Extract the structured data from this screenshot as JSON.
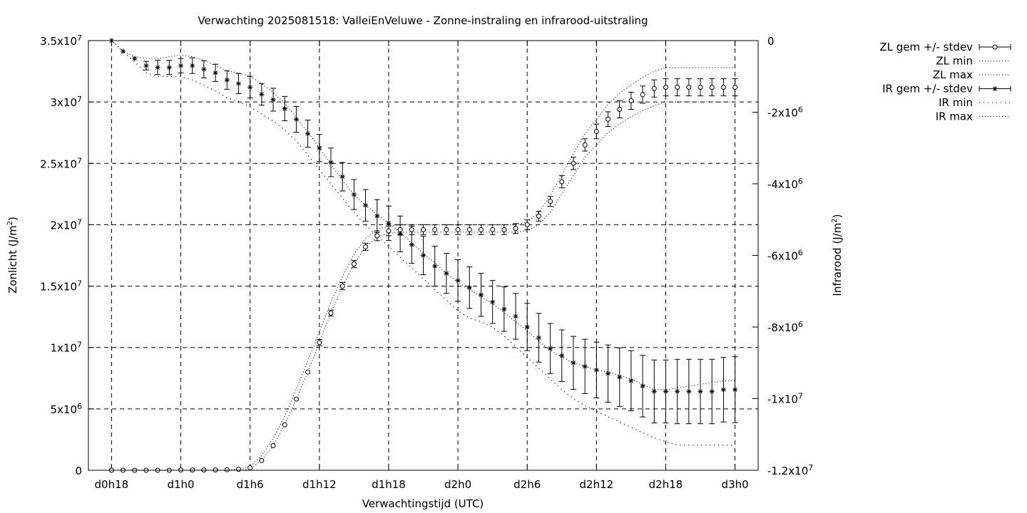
{
  "chart_data": {
    "type": "line",
    "title": "Verwachting 2025081518: ValleiEnVeluwe - Zonne-instraling en infrarood-uitstraling",
    "xlabel": "Verwachtingstijd (UTC)",
    "ylabel_left": "Zonlicht (J/m",
    "ylabel_right": "Infrarood (J/m",
    "ylabel_sup": "2",
    "ylabel_close": ")",
    "x_ticks": [
      {
        "h": 0,
        "label": "d0h18"
      },
      {
        "h": 6,
        "label": "d1h0"
      },
      {
        "h": 12,
        "label": "d1h6"
      },
      {
        "h": 18,
        "label": "d1h12"
      },
      {
        "h": 24,
        "label": "d1h18"
      },
      {
        "h": 30,
        "label": "d2h0"
      },
      {
        "h": 36,
        "label": "d2h6"
      },
      {
        "h": 42,
        "label": "d2h12"
      },
      {
        "h": 48,
        "label": "d2h18"
      },
      {
        "h": 54,
        "label": "d3h0"
      }
    ],
    "xlim": [
      -2,
      56
    ],
    "y_left": {
      "lim": [
        0,
        35000000
      ],
      "ticks": [
        {
          "v": 0,
          "m": "0",
          "e": ""
        },
        {
          "v": 5000000,
          "m": "5x10",
          "e": "6"
        },
        {
          "v": 10000000,
          "m": "1x10",
          "e": "7"
        },
        {
          "v": 15000000,
          "m": "1.5x10",
          "e": "7"
        },
        {
          "v": 20000000,
          "m": "2x10",
          "e": "7"
        },
        {
          "v": 25000000,
          "m": "2.5x10",
          "e": "7"
        },
        {
          "v": 30000000,
          "m": "3x10",
          "e": "7"
        },
        {
          "v": 35000000,
          "m": "3.5x10",
          "e": "7"
        }
      ]
    },
    "y_right": {
      "lim": [
        -12000000,
        0
      ],
      "ticks": [
        {
          "v": 0,
          "m": "0",
          "e": ""
        },
        {
          "v": -2000000,
          "m": "-2x10",
          "e": "6"
        },
        {
          "v": -4000000,
          "m": "-4x10",
          "e": "6"
        },
        {
          "v": -6000000,
          "m": "-6x10",
          "e": "6"
        },
        {
          "v": -8000000,
          "m": "-8x10",
          "e": "6"
        },
        {
          "v": -10000000,
          "m": "-1x10",
          "e": "7"
        },
        {
          "v": -12000000,
          "m": "-1.2x10",
          "e": "7"
        }
      ]
    },
    "grid": true,
    "legend_position": "top-right outside",
    "legend": [
      "ZL gem +/- stdev",
      "ZL min",
      "ZL max",
      "IR gem +/- stdev",
      "IR min",
      "IR max"
    ],
    "x": [
      0,
      1,
      2,
      3,
      4,
      5,
      6,
      7,
      8,
      9,
      10,
      11,
      12,
      13,
      14,
      15,
      16,
      17,
      18,
      19,
      20,
      21,
      22,
      23,
      24,
      25,
      26,
      27,
      28,
      29,
      30,
      31,
      32,
      33,
      34,
      35,
      36,
      37,
      38,
      39,
      40,
      41,
      42,
      43,
      44,
      45,
      46,
      47,
      48,
      49,
      50,
      51,
      52,
      53,
      54
    ],
    "series": [
      {
        "name": "ZL gem +/- stdev",
        "axis": "left",
        "marker": "circle",
        "values": [
          0,
          0,
          0,
          0,
          0,
          0,
          20000,
          20000,
          20000,
          20000,
          40000,
          80000,
          200000,
          800000,
          2000000,
          3700000,
          5800000,
          8000000,
          10400000,
          12800000,
          15000000,
          16800000,
          18200000,
          19100000,
          19500000,
          19600000,
          19600000,
          19600000,
          19600000,
          19600000,
          19600000,
          19600000,
          19600000,
          19600000,
          19600000,
          19700000,
          20000000,
          20700000,
          21900000,
          23500000,
          25000000,
          26500000,
          27600000,
          28600000,
          29400000,
          30100000,
          30600000,
          31100000,
          31200000,
          31200000,
          31200000,
          31200000,
          31200000,
          31200000,
          31200000
        ],
        "err": [
          0,
          0,
          0,
          0,
          0,
          0,
          0,
          0,
          0,
          0,
          0,
          0,
          0,
          0,
          0,
          0,
          0,
          0,
          250000,
          250000,
          300000,
          300000,
          300000,
          400000,
          400000,
          400000,
          400000,
          400000,
          400000,
          400000,
          400000,
          400000,
          400000,
          400000,
          400000,
          400000,
          400000,
          400000,
          400000,
          500000,
          500000,
          500000,
          600000,
          600000,
          700000,
          700000,
          700000,
          700000,
          700000,
          700000,
          700000,
          700000,
          700000,
          700000,
          700000
        ]
      },
      {
        "name": "ZL min",
        "axis": "left",
        "values": [
          0,
          0,
          0,
          0,
          0,
          0,
          0,
          0,
          0,
          0,
          0,
          0,
          100000,
          800000,
          2000000,
          3700000,
          5800000,
          8000000,
          10400000,
          12800000,
          15000000,
          16800000,
          18200000,
          19000000,
          19300000,
          19400000,
          19400000,
          19400000,
          19400000,
          19400000,
          19400000,
          19400000,
          19400000,
          19400000,
          19400000,
          19400000,
          19500000,
          20000000,
          21000000,
          22500000,
          24000000,
          25500000,
          26500000,
          27500000,
          28200000,
          28800000,
          29300000,
          29700000,
          30000000,
          30000000,
          30000000,
          30000000,
          30000000,
          30000000,
          30000000
        ]
      },
      {
        "name": "ZL max",
        "axis": "left",
        "values": [
          0,
          0,
          0,
          0,
          0,
          0,
          0,
          0,
          0,
          0,
          0,
          100000,
          300000,
          1200000,
          2600000,
          4400000,
          6600000,
          8900000,
          11300000,
          13700000,
          15800000,
          17600000,
          18900000,
          19600000,
          19900000,
          20000000,
          20000000,
          20000000,
          20000000,
          20000000,
          20000000,
          20000000,
          20000000,
          20000000,
          20000000,
          20000000,
          20200000,
          21000000,
          22400000,
          24100000,
          25800000,
          27400000,
          28600000,
          29800000,
          30700000,
          31400000,
          32000000,
          32500000,
          32800000,
          32800000,
          32800000,
          32800000,
          32800000,
          32800000,
          32800000
        ]
      },
      {
        "name": "IR gem +/- stdev",
        "axis": "right",
        "marker": "star",
        "values": [
          0,
          -300000,
          -500000,
          -700000,
          -750000,
          -750000,
          -700000,
          -700000,
          -800000,
          -900000,
          -1100000,
          -1200000,
          -1300000,
          -1500000,
          -1650000,
          -1900000,
          -2200000,
          -2600000,
          -3000000,
          -3400000,
          -3800000,
          -4300000,
          -4600000,
          -4900000,
          -5100000,
          -5400000,
          -5700000,
          -6000000,
          -6300000,
          -6500000,
          -6700000,
          -6900000,
          -7100000,
          -7300000,
          -7500000,
          -7700000,
          -8000000,
          -8300000,
          -8600000,
          -8800000,
          -9000000,
          -9100000,
          -9200000,
          -9300000,
          -9400000,
          -9500000,
          -9650000,
          -9800000,
          -9800000,
          -9800000,
          -9800000,
          -9800000,
          -9800000,
          -9750000,
          -9750000
        ],
        "err": [
          0,
          0,
          0,
          120000,
          200000,
          200000,
          200000,
          220000,
          240000,
          240000,
          260000,
          280000,
          300000,
          300000,
          320000,
          340000,
          360000,
          380000,
          380000,
          400000,
          400000,
          420000,
          440000,
          460000,
          480000,
          500000,
          520000,
          540000,
          560000,
          560000,
          580000,
          580000,
          600000,
          600000,
          620000,
          640000,
          660000,
          680000,
          700000,
          720000,
          740000,
          760000,
          780000,
          800000,
          820000,
          840000,
          860000,
          880000,
          880000,
          900000,
          900000,
          900000,
          900000,
          900000,
          920000
        ]
      },
      {
        "name": "IR min",
        "axis": "right",
        "values": [
          0,
          -300000,
          -600000,
          -900000,
          -1000000,
          -1000000,
          -1000000,
          -1100000,
          -1250000,
          -1400000,
          -1600000,
          -1700000,
          -1850000,
          -2050000,
          -2250000,
          -2500000,
          -2800000,
          -3200000,
          -3600000,
          -4000000,
          -4400000,
          -4800000,
          -5150000,
          -5450000,
          -5750000,
          -6050000,
          -6350000,
          -6650000,
          -6950000,
          -7250000,
          -7550000,
          -7750000,
          -7850000,
          -8000000,
          -8250000,
          -8550000,
          -8850000,
          -9150000,
          -9450000,
          -9750000,
          -10000000,
          -10200000,
          -10350000,
          -10500000,
          -10650000,
          -10800000,
          -10950000,
          -11100000,
          -11200000,
          -11300000,
          -11300000,
          -11300000,
          -11300000,
          -11300000,
          -11300000
        ]
      },
      {
        "name": "IR max",
        "axis": "right",
        "values": [
          0,
          -300000,
          -450000,
          -500000,
          -500000,
          -450000,
          -400000,
          -450000,
          -550000,
          -700000,
          -850000,
          -900000,
          -1000000,
          -1200000,
          -1450000,
          -1750000,
          -2150000,
          -2550000,
          -3000000,
          -3450000,
          -3900000,
          -4300000,
          -4600000,
          -4850000,
          -5100000,
          -5350000,
          -5650000,
          -5950000,
          -6200000,
          -6500000,
          -6750000,
          -6950000,
          -7150000,
          -7350000,
          -7600000,
          -7850000,
          -8100000,
          -8400000,
          -8650000,
          -8850000,
          -9000000,
          -9100000,
          -9200000,
          -9250000,
          -9350000,
          -9450000,
          -9600000,
          -9750000,
          -9750000,
          -9700000,
          -9650000,
          -9600000,
          -9550000,
          -9500000,
          -9500000
        ]
      }
    ]
  }
}
